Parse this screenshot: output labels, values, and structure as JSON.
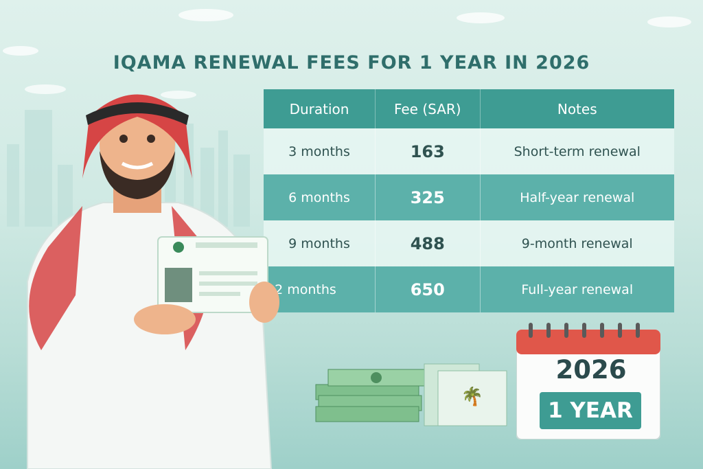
{
  "title": "IQAMA RENEWAL FEES FOR 1 YEAR IN 2026",
  "table": {
    "headers": [
      "Duration",
      "Fee (SAR)",
      "Notes"
    ],
    "rows": [
      {
        "duration": "3 months",
        "fee": "163",
        "note": "Short-term renewal"
      },
      {
        "duration": "6 months",
        "fee": "325",
        "note": "Half-year renewal"
      },
      {
        "duration": "9 months",
        "fee": "488",
        "note": "9-month renewal"
      },
      {
        "duration": "12 months",
        "fee": "650",
        "note": "Full-year renewal"
      }
    ]
  },
  "calendar": {
    "year": "2026",
    "tag": "1 YEAR"
  },
  "colors": {
    "accent": "#3e9c93",
    "title": "#2f6e6b",
    "calendar_top": "#e0574a",
    "ghutra_red": "#d64545"
  }
}
